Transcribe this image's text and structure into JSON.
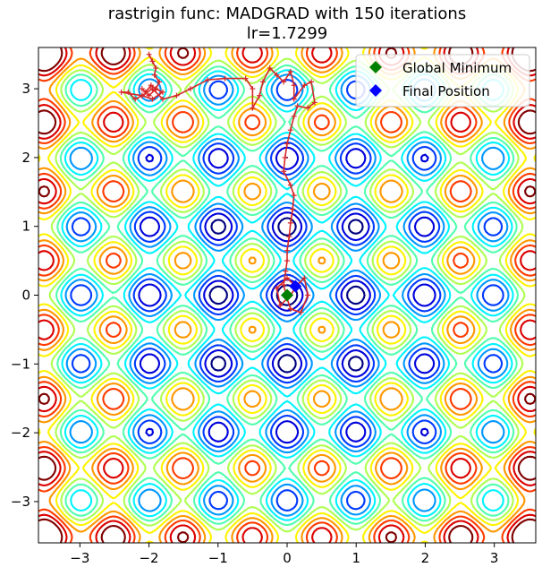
{
  "chart_data": {
    "type": "contour",
    "title": "rastrigin func: MADGRAD with 150 iterations",
    "subtitle": "lr=1.7299",
    "xlabel": "",
    "ylabel": "",
    "xlim": [
      -3.6,
      3.6
    ],
    "ylim": [
      -3.6,
      3.6
    ],
    "xticks": [
      -3,
      -2,
      -1,
      0,
      1,
      2,
      3
    ],
    "yticks": [
      -3,
      -2,
      -1,
      0,
      1,
      2,
      3
    ],
    "xtick_labels": [
      "−3",
      "−2",
      "−1",
      "0",
      "1",
      "2",
      "3"
    ],
    "ytick_labels": [
      "−3",
      "−2",
      "−1",
      "0",
      "1",
      "2",
      "3"
    ],
    "grid": false,
    "colormap": "jet",
    "function": "rastrigin",
    "legend": {
      "placement": "top-right",
      "entries": [
        {
          "label": "Global Minimum",
          "marker": "diamond",
          "color": "#008000"
        },
        {
          "label": "Final Position",
          "marker": "diamond",
          "color": "#0000ff"
        }
      ]
    },
    "path": {
      "color": "#d62728",
      "x": [
        -2.0,
        -1.95,
        -1.9,
        -1.92,
        -1.85,
        -1.9,
        -1.97,
        -2.05,
        -2.1,
        -2.0,
        -1.9,
        -1.8,
        -1.95,
        -2.1,
        -2.2,
        -2.3,
        -2.4,
        -2.1,
        -1.95,
        -1.8,
        -1.6,
        -1.4,
        -1.15,
        -0.9,
        -0.6,
        -0.5,
        -0.5,
        -0.4,
        -0.35,
        -0.25,
        -0.15,
        -0.05,
        0.05,
        0.1,
        0.1,
        0.25,
        0.35,
        0.4,
        0.3,
        0.15,
        0.1,
        0.05,
        0.0,
        -0.03,
        -0.05,
        0.05,
        0.1,
        0.08,
        0.05,
        0.03,
        0.0,
        0.0,
        -0.02,
        -0.05,
        0.0,
        0.05,
        0.2,
        0.3,
        0.25,
        0.15,
        0.05,
        -0.1,
        -0.15,
        0.0,
        0.12
      ],
      "y": [
        3.5,
        3.4,
        3.3,
        3.2,
        3.1,
        3.0,
        3.05,
        2.95,
        3.0,
        2.9,
        3.0,
        2.95,
        2.85,
        2.9,
        2.85,
        2.95,
        2.95,
        2.9,
        3.0,
        2.85,
        2.9,
        3.0,
        3.13,
        3.15,
        3.15,
        3.0,
        2.72,
        2.9,
        3.1,
        3.3,
        3.2,
        3.1,
        3.25,
        3.05,
        2.85,
        3.05,
        3.1,
        2.8,
        2.72,
        2.75,
        2.6,
        2.4,
        2.2,
        2.0,
        1.8,
        1.6,
        1.45,
        1.25,
        1.05,
        0.85,
        0.65,
        0.5,
        0.35,
        0.15,
        -0.05,
        -0.2,
        -0.25,
        0.0,
        0.25,
        0.15,
        0.0,
        -0.15,
        0.1,
        0.25,
        0.13
      ]
    },
    "global_minimum": {
      "x": 0.0,
      "y": 0.0
    },
    "final_position": {
      "x": 0.12,
      "y": 0.13
    }
  }
}
